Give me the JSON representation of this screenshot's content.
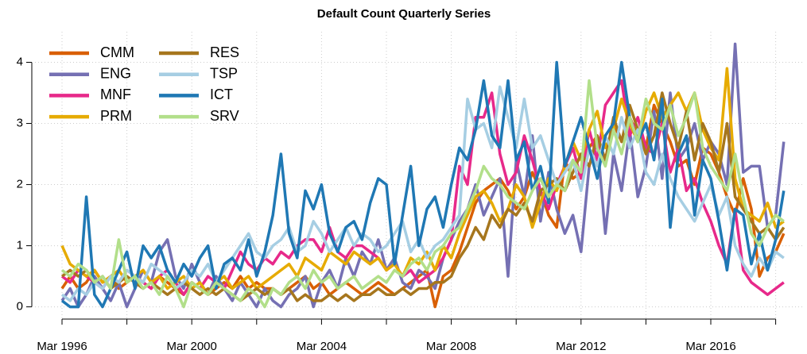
{
  "chart_data": {
    "type": "line",
    "title": "Default Count Quarterly Series",
    "categories": [
      "Mar 1996",
      null,
      null,
      null,
      null,
      null,
      null,
      null,
      null,
      null,
      null,
      null,
      null,
      null,
      null,
      null,
      "Mar 2000",
      null,
      null,
      null,
      null,
      null,
      null,
      null,
      null,
      null,
      null,
      null,
      null,
      null,
      null,
      null,
      "Mar 2004",
      null,
      null,
      null,
      null,
      null,
      null,
      null,
      null,
      null,
      null,
      null,
      null,
      null,
      null,
      null,
      "Mar 2008",
      null,
      null,
      null,
      null,
      null,
      null,
      null,
      null,
      null,
      null,
      null,
      null,
      null,
      null,
      null,
      "Mar 2012",
      null,
      null,
      null,
      null,
      null,
      null,
      null,
      null,
      null,
      null,
      null,
      null,
      null,
      null,
      null,
      "Mar 2016",
      null,
      null,
      null,
      null,
      null,
      null,
      null,
      null,
      null
    ],
    "ylim": [
      -0.2,
      4.5
    ],
    "yticks": [
      0,
      1,
      2,
      3,
      4
    ],
    "grid": true,
    "legend": "top-left",
    "series": [
      {
        "name": "CMM",
        "color": "#d95f02",
        "values": [
          0.3,
          0.5,
          0.3,
          0.4,
          0.6,
          0.4,
          0.5,
          0.3,
          0.4,
          0.5,
          0.4,
          0.3,
          0.5,
          0.4,
          0.3,
          0.2,
          0.4,
          0.3,
          0.2,
          0.3,
          0.4,
          0.3,
          0.5,
          0.3,
          0.4,
          0.3,
          0.3,
          0.2,
          0.3,
          0.4,
          0.5,
          0.3,
          0.4,
          0.2,
          0.3,
          0.4,
          0.3,
          0.2,
          0.3,
          0.4,
          0.3,
          0.2,
          0.3,
          0.4,
          0.5,
          0.6,
          0.0,
          0.5,
          0.6,
          0.9,
          1.3,
          1.7,
          1.9,
          2.0,
          2.1,
          1.9,
          1.6,
          1.8,
          2.2,
          1.9,
          1.5,
          1.3,
          2.4,
          2.1,
          2.2,
          2.6,
          2.8,
          2.4,
          3.0,
          2.7,
          3.1,
          2.8,
          2.6,
          3.3,
          3.0,
          2.7,
          2.3,
          2.4,
          2.0,
          2.6,
          2.5,
          2.2,
          1.8,
          1.5,
          2.1,
          1.6,
          0.5,
          0.8,
          0.9,
          1.2
        ]
      },
      {
        "name": "ENG",
        "color": "#7570b3",
        "values": [
          0.1,
          0.3,
          0.0,
          0.2,
          0.5,
          0.3,
          0.1,
          0.4,
          0.0,
          0.3,
          0.6,
          0.4,
          0.9,
          1.1,
          0.5,
          0.3,
          0.7,
          0.4,
          0.2,
          0.5,
          0.3,
          0.1,
          0.4,
          0.2,
          0.0,
          0.3,
          0.1,
          0.0,
          0.2,
          0.3,
          0.5,
          0.0,
          0.4,
          0.6,
          0.3,
          0.8,
          0.5,
          0.9,
          0.7,
          1.1,
          0.6,
          0.8,
          0.4,
          0.3,
          0.6,
          0.5,
          0.3,
          0.8,
          1.1,
          1.4,
          1.6,
          2.0,
          1.5,
          1.8,
          2.1,
          0.5,
          2.4,
          1.8,
          2.8,
          1.4,
          2.2,
          1.6,
          1.2,
          1.5,
          0.9,
          2.3,
          2.7,
          1.2,
          2.5,
          1.9,
          2.9,
          1.8,
          2.3,
          3.2,
          2.1,
          3.5,
          2.4,
          2.6,
          3.0,
          2.4,
          2.7,
          2.5,
          2.0,
          4.3,
          2.2,
          2.3,
          2.3,
          1.3,
          1.5,
          2.7
        ]
      },
      {
        "name": "MNF",
        "color": "#e7298a",
        "values": [
          0.5,
          0.4,
          0.6,
          0.5,
          0.4,
          0.3,
          0.5,
          0.4,
          0.6,
          0.5,
          0.4,
          0.3,
          0.5,
          0.6,
          0.4,
          0.2,
          0.4,
          0.3,
          0.5,
          0.4,
          0.3,
          0.6,
          0.9,
          0.7,
          0.6,
          0.8,
          0.7,
          0.9,
          0.8,
          1.0,
          1.1,
          1.1,
          0.9,
          1.3,
          0.9,
          0.8,
          1.0,
          1.0,
          0.9,
          0.8,
          0.6,
          0.7,
          0.5,
          0.6,
          0.4,
          0.5,
          0.6,
          0.8,
          1.1,
          2.3,
          2.0,
          3.1,
          3.1,
          3.5,
          2.5,
          2.0,
          2.2,
          2.8,
          2.4,
          1.9,
          1.6,
          2.0,
          2.3,
          2.6,
          2.1,
          2.9,
          2.4,
          3.3,
          3.5,
          3.7,
          2.8,
          3.1,
          2.6,
          2.5,
          3.0,
          2.2,
          2.6,
          1.9,
          2.1,
          1.7,
          1.4,
          1.0,
          0.7,
          1.6,
          0.6,
          0.4,
          0.3,
          0.2,
          0.3,
          0.4
        ]
      },
      {
        "name": "PRM",
        "color": "#e6ab02",
        "values": [
          1.0,
          0.7,
          0.6,
          0.5,
          0.6,
          0.4,
          0.5,
          0.6,
          0.4,
          0.5,
          0.6,
          0.4,
          0.5,
          0.3,
          0.4,
          0.5,
          0.3,
          0.4,
          0.2,
          0.4,
          0.5,
          0.3,
          0.4,
          0.5,
          0.3,
          0.4,
          0.5,
          0.6,
          0.7,
          0.5,
          0.8,
          0.7,
          0.6,
          0.9,
          0.8,
          0.7,
          0.9,
          0.8,
          0.7,
          0.8,
          0.6,
          0.7,
          0.5,
          0.8,
          0.7,
          0.9,
          0.6,
          1.0,
          0.8,
          1.2,
          1.5,
          1.8,
          1.9,
          1.7,
          1.4,
          1.6,
          2.0,
          1.8,
          1.3,
          1.7,
          2.1,
          1.9,
          2.3,
          2.7,
          2.4,
          2.9,
          3.2,
          2.6,
          2.9,
          3.4,
          3.0,
          2.7,
          3.2,
          3.5,
          3.1,
          3.3,
          3.5,
          3.2,
          3.5,
          2.9,
          2.6,
          2.4,
          3.9,
          2.1,
          1.6,
          1.5,
          1.4,
          1.7,
          1.3,
          1.4
        ]
      },
      {
        "name": "RES",
        "color": "#a6761d",
        "values": [
          0.5,
          0.6,
          0.5,
          0.6,
          0.4,
          0.5,
          0.3,
          0.4,
          0.5,
          0.4,
          0.3,
          0.4,
          0.3,
          0.2,
          0.3,
          0.4,
          0.3,
          0.2,
          0.3,
          0.2,
          0.3,
          0.2,
          0.1,
          0.2,
          0.3,
          0.2,
          0.3,
          0.2,
          0.3,
          0.1,
          0.2,
          0.1,
          0.1,
          0.2,
          0.1,
          0.2,
          0.1,
          0.2,
          0.2,
          0.3,
          0.2,
          0.2,
          0.3,
          0.2,
          0.3,
          0.3,
          0.4,
          0.4,
          0.5,
          0.8,
          1.0,
          1.3,
          1.1,
          1.5,
          1.3,
          1.6,
          1.5,
          1.7,
          1.4,
          1.9,
          2.0,
          2.1,
          1.9,
          2.2,
          2.5,
          2.3,
          2.8,
          2.4,
          3.1,
          2.7,
          3.3,
          2.9,
          2.5,
          2.8,
          3.5,
          3.0,
          2.6,
          3.2,
          2.4,
          3.0,
          2.7,
          2.2,
          3.0,
          1.8,
          1.6,
          1.4,
          1.2,
          1.3,
          1.1,
          1.3
        ]
      },
      {
        "name": "TSP",
        "color": "#a6cee3",
        "values": [
          0.2,
          0.1,
          0.3,
          0.2,
          0.4,
          0.3,
          0.5,
          0.4,
          0.6,
          0.5,
          0.4,
          0.7,
          0.6,
          0.5,
          0.3,
          0.4,
          0.6,
          0.5,
          0.7,
          0.4,
          0.6,
          0.8,
          1.0,
          1.2,
          0.9,
          0.8,
          1.0,
          1.1,
          1.3,
          0.9,
          1.0,
          1.4,
          1.2,
          0.9,
          1.1,
          1.3,
          1.0,
          1.2,
          1.1,
          0.9,
          1.0,
          1.2,
          1.4,
          0.9,
          1.1,
          0.8,
          1.0,
          1.1,
          1.3,
          1.5,
          3.4,
          2.9,
          3.0,
          2.6,
          3.6,
          3.1,
          2.6,
          3.4,
          2.6,
          2.8,
          2.4,
          2.0,
          2.2,
          2.4,
          1.9,
          2.6,
          2.3,
          2.8,
          2.5,
          3.1,
          2.6,
          2.9,
          2.2,
          2.0,
          2.5,
          2.1,
          1.8,
          1.6,
          1.4,
          1.7,
          2.0,
          1.5,
          1.8,
          1.0,
          0.7,
          0.5,
          0.8,
          0.6,
          0.9,
          0.8
        ]
      },
      {
        "name": "ICT",
        "color": "#1f78b4",
        "values": [
          0.1,
          0.0,
          0.0,
          1.8,
          0.2,
          0.0,
          0.3,
          0.6,
          0.9,
          0.3,
          1.0,
          0.8,
          1.0,
          0.6,
          0.4,
          0.7,
          0.5,
          0.8,
          1.0,
          0.3,
          0.7,
          0.8,
          0.6,
          1.1,
          0.5,
          0.9,
          1.5,
          2.5,
          1.2,
          0.8,
          1.9,
          1.6,
          2.0,
          1.2,
          0.9,
          1.3,
          1.4,
          1.1,
          1.7,
          2.1,
          2.0,
          0.7,
          1.5,
          2.3,
          1.0,
          1.6,
          1.8,
          1.3,
          2.0,
          2.6,
          2.4,
          2.9,
          3.7,
          2.8,
          2.6,
          3.7,
          2.4,
          2.7,
          1.9,
          2.3,
          1.7,
          4.0,
          2.3,
          2.7,
          3.1,
          2.6,
          2.1,
          2.8,
          3.0,
          4.0,
          3.1,
          2.7,
          3.0,
          2.4,
          3.4,
          1.3,
          2.5,
          2.8,
          1.5,
          2.4,
          2.1,
          1.4,
          0.6,
          1.6,
          1.5,
          0.7,
          1.2,
          0.6,
          1.1,
          1.9
        ]
      },
      {
        "name": "SRV",
        "color": "#b2df8a",
        "values": [
          0.6,
          0.5,
          0.7,
          0.6,
          0.4,
          0.5,
          0.3,
          1.1,
          0.4,
          0.5,
          0.3,
          0.4,
          0.2,
          0.5,
          0.3,
          0.0,
          0.4,
          0.3,
          0.2,
          0.4,
          0.3,
          0.2,
          0.1,
          0.3,
          0.2,
          0.0,
          0.3,
          0.2,
          0.4,
          0.5,
          0.3,
          0.6,
          0.4,
          0.5,
          0.3,
          0.4,
          0.5,
          0.3,
          0.4,
          0.5,
          0.4,
          0.6,
          0.5,
          0.7,
          0.8,
          0.6,
          0.9,
          1.0,
          1.2,
          1.3,
          1.6,
          1.9,
          2.3,
          2.1,
          2.0,
          1.8,
          1.7,
          1.6,
          1.9,
          2.1,
          1.8,
          2.0,
          1.9,
          2.4,
          2.2,
          3.7,
          2.6,
          2.3,
          2.9,
          2.5,
          3.1,
          2.7,
          3.4,
          3.0,
          2.9,
          3.3,
          2.8,
          3.1,
          3.5,
          2.6,
          2.3,
          2.1,
          1.9,
          2.5,
          1.8,
          1.2,
          1.0,
          1.3,
          1.5,
          1.4
        ]
      }
    ]
  }
}
